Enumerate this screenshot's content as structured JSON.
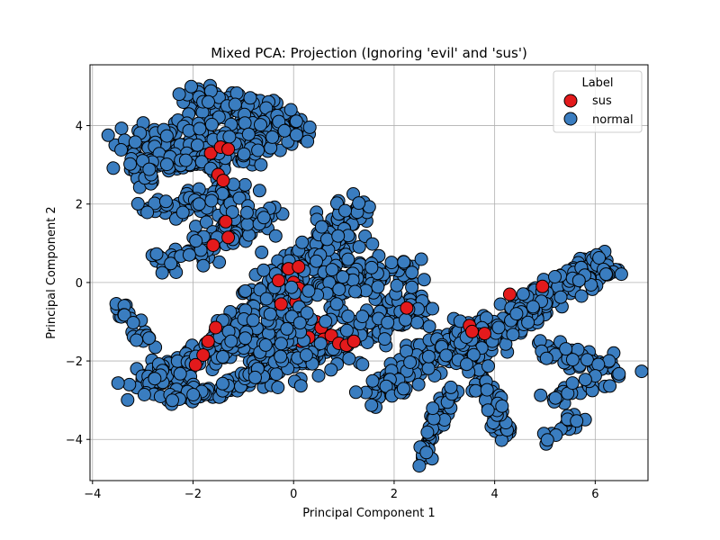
{
  "chart_data": {
    "type": "scatter",
    "title": "Mixed PCA: Projection (Ignoring 'evil' and 'sus')",
    "xlabel": "Principal Component 1",
    "ylabel": "Principal Component 2",
    "xlim": [
      -4.05,
      7.05
    ],
    "ylim": [
      -5.05,
      5.55
    ],
    "x_ticks": [
      -4,
      -2,
      0,
      2,
      4,
      6
    ],
    "x_tick_labels": [
      "−4",
      "−2",
      "0",
      "2",
      "4",
      "6"
    ],
    "y_ticks": [
      -4,
      -2,
      0,
      2,
      4
    ],
    "y_tick_labels": [
      "−4",
      "−2",
      "0",
      "2",
      "4"
    ],
    "grid": true,
    "legend": {
      "title": "Label",
      "placement": "top-right",
      "entries": [
        "sus",
        "normal"
      ]
    },
    "series": [
      {
        "name": "normal",
        "color": "#3a7dc0",
        "clusters": [
          {
            "from": [
              -2.2,
              4.8
            ],
            "to": [
              -0.4,
              4.2
            ],
            "spread": 0.35,
            "count": 110
          },
          {
            "from": [
              -3.3,
              3.5
            ],
            "to": [
              0.2,
              3.9
            ],
            "spread": 0.4,
            "count": 170
          },
          {
            "from": [
              -3.3,
              2.8
            ],
            "to": [
              -0.8,
              3.3
            ],
            "spread": 0.3,
            "count": 90
          },
          {
            "from": [
              -2.8,
              1.8
            ],
            "to": [
              -1.0,
              2.3
            ],
            "spread": 0.3,
            "count": 70
          },
          {
            "from": [
              -2.7,
              0.4
            ],
            "to": [
              -0.6,
              1.8
            ],
            "spread": 0.35,
            "count": 90
          },
          {
            "from": [
              -3.5,
              -0.6
            ],
            "to": [
              -2.9,
              -1.5
            ],
            "spread": 0.15,
            "count": 25
          },
          {
            "from": [
              -3.2,
              -2.7
            ],
            "to": [
              -1.0,
              -1.4
            ],
            "spread": 0.3,
            "count": 150
          },
          {
            "from": [
              -2.6,
              -3.0
            ],
            "to": [
              -1.0,
              -2.6
            ],
            "spread": 0.2,
            "count": 50
          },
          {
            "from": [
              -1.2,
              -1.5
            ],
            "to": [
              1.2,
              1.8
            ],
            "spread": 0.5,
            "count": 260
          },
          {
            "from": [
              -0.8,
              -2.4
            ],
            "to": [
              2.5,
              -0.6
            ],
            "spread": 0.45,
            "count": 230
          },
          {
            "from": [
              0.5,
              -0.2
            ],
            "to": [
              2.4,
              0.4
            ],
            "spread": 0.35,
            "count": 90
          },
          {
            "from": [
              1.6,
              -2.8
            ],
            "to": [
              3.2,
              -1.4
            ],
            "spread": 0.3,
            "count": 110
          },
          {
            "from": [
              2.5,
              -4.6
            ],
            "to": [
              3.2,
              -2.6
            ],
            "spread": 0.15,
            "count": 60
          },
          {
            "from": [
              3.2,
              -1.9
            ],
            "to": [
              6.2,
              0.6
            ],
            "spread": 0.35,
            "count": 260
          },
          {
            "from": [
              3.3,
              -1.1
            ],
            "to": [
              4.2,
              -3.9
            ],
            "spread": 0.2,
            "count": 90
          },
          {
            "from": [
              4.8,
              -1.7
            ],
            "to": [
              6.5,
              -2.2
            ],
            "spread": 0.25,
            "count": 45
          },
          {
            "from": [
              5.0,
              -3.0
            ],
            "to": [
              6.4,
              -2.4
            ],
            "spread": 0.2,
            "count": 25
          },
          {
            "from": [
              4.9,
              -4.2
            ],
            "to": [
              5.7,
              -3.3
            ],
            "spread": 0.15,
            "count": 15
          }
        ]
      },
      {
        "name": "sus",
        "color": "#e31a1c",
        "points": [
          [
            -1.65,
            3.3
          ],
          [
            -1.45,
            3.45
          ],
          [
            -1.3,
            3.4
          ],
          [
            -1.5,
            2.75
          ],
          [
            -1.4,
            2.6
          ],
          [
            -1.35,
            1.55
          ],
          [
            -1.3,
            1.15
          ],
          [
            -1.6,
            0.95
          ],
          [
            -0.1,
            0.35
          ],
          [
            0.1,
            0.4
          ],
          [
            -0.3,
            0.05
          ],
          [
            0.0,
            0.0
          ],
          [
            0.1,
            -0.15
          ],
          [
            -0.25,
            -0.55
          ],
          [
            0.05,
            -0.5
          ],
          [
            0.25,
            -0.95
          ],
          [
            0.45,
            -1.0
          ],
          [
            0.55,
            -1.15
          ],
          [
            0.3,
            -1.4
          ],
          [
            0.6,
            -1.45
          ],
          [
            0.75,
            -1.35
          ],
          [
            0.0,
            -1.3
          ],
          [
            0.15,
            -1.5
          ],
          [
            0.9,
            -1.55
          ],
          [
            1.05,
            -1.6
          ],
          [
            1.2,
            -1.5
          ],
          [
            -1.55,
            -1.15
          ],
          [
            -1.7,
            -1.5
          ],
          [
            -1.8,
            -1.85
          ],
          [
            -1.95,
            -2.1
          ],
          [
            2.25,
            -0.65
          ],
          [
            3.5,
            -1.1
          ],
          [
            3.55,
            -1.25
          ],
          [
            3.8,
            -1.3
          ],
          [
            4.3,
            -0.3
          ],
          [
            4.95,
            -0.1
          ]
        ]
      }
    ]
  }
}
